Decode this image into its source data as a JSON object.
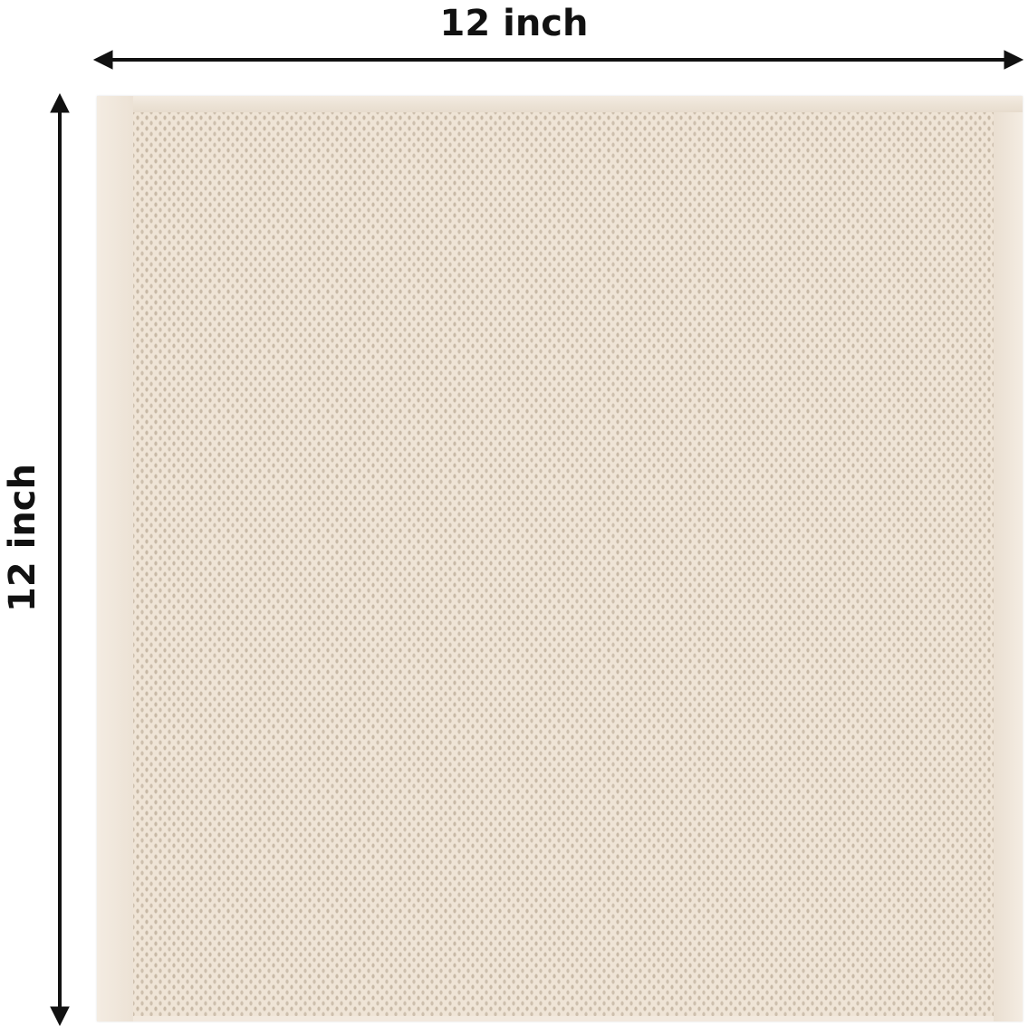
{
  "dimensions": {
    "width_label": "12 inch",
    "height_label": "12 inch"
  },
  "product": {
    "description_icon": "waffle-weave-dishcloth",
    "colors": {
      "cloth": "#efe4d6",
      "weave_shadow": "#c8b9a6",
      "annotation": "#111111"
    }
  }
}
